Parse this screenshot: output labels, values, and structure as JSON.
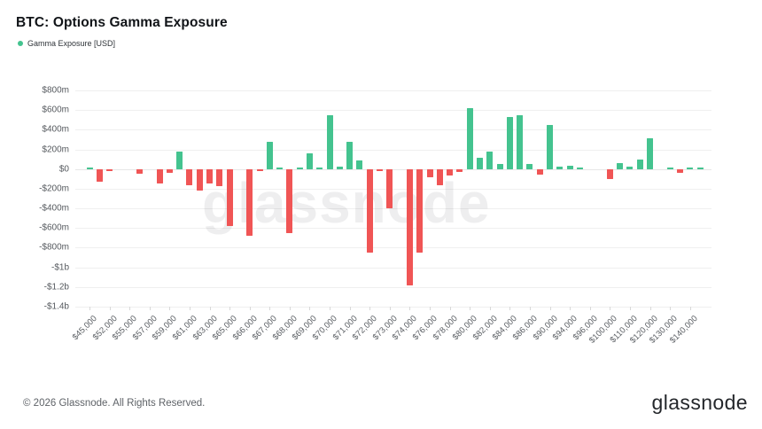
{
  "header": {
    "title": "BTC: Options Gamma Exposure",
    "legend": {
      "label": "Gamma Exposure [USD]",
      "color": "#44c38f"
    }
  },
  "watermark": "glassnode",
  "footer": {
    "copyright": "© 2026 Glassnode. All Rights Reserved.",
    "logo_text": "glassnode"
  },
  "chart_data": {
    "type": "bar",
    "title": "BTC: Options Gamma Exposure",
    "series_name": "Gamma Exposure [USD]",
    "values_unit": "USD millions",
    "ylim_musd": [
      -1400,
      800
    ],
    "grid": true,
    "legend_position": "top-left",
    "colors": {
      "positive": "#44c38f",
      "negative": "#f05555"
    },
    "y_ticks": [
      {
        "label": "$800m",
        "value_musd": 800
      },
      {
        "label": "$600m",
        "value_musd": 600
      },
      {
        "label": "$400m",
        "value_musd": 400
      },
      {
        "label": "$200m",
        "value_musd": 200
      },
      {
        "label": "$0",
        "value_musd": 0
      },
      {
        "label": "-$200m",
        "value_musd": -200
      },
      {
        "label": "-$400m",
        "value_musd": -400
      },
      {
        "label": "-$600m",
        "value_musd": -600
      },
      {
        "label": "-$800m",
        "value_musd": -800
      },
      {
        "label": "-$1b",
        "value_musd": -1000
      },
      {
        "label": "-$1.2b",
        "value_musd": -1200
      },
      {
        "label": "-$1.4b",
        "value_musd": -1400
      }
    ],
    "x_tick_labels": [
      "$45,000",
      "$52,000",
      "$55,000",
      "$57,000",
      "$59,000",
      "$61,000",
      "$63,000",
      "$65,000",
      "$66,000",
      "$67,000",
      "$68,000",
      "$69,000",
      "$70,000",
      "$71,000",
      "$72,000",
      "$73,000",
      "$74,000",
      "$76,000",
      "$78,000",
      "$80,000",
      "$82,000",
      "$84,000",
      "$86,000",
      "$90,000",
      "$94,000",
      "$96,000",
      "$100,000",
      "$110,000",
      "$120,000",
      "$130,000",
      "$140,000"
    ],
    "bars": [
      {
        "label": "$45,000",
        "value_musd": 15
      },
      {
        "label": "",
        "value_musd": -130
      },
      {
        "label": "$52,000",
        "value_musd": -20
      },
      {
        "label": "",
        "value_musd": 0
      },
      {
        "label": "$55,000",
        "value_musd": 0
      },
      {
        "label": "",
        "value_musd": -45
      },
      {
        "label": "$57,000",
        "value_musd": 0
      },
      {
        "label": "",
        "value_musd": -145
      },
      {
        "label": "$59,000",
        "value_musd": -40
      },
      {
        "label": "",
        "value_musd": 180
      },
      {
        "label": "$61,000",
        "value_musd": -165
      },
      {
        "label": "",
        "value_musd": -220
      },
      {
        "label": "$63,000",
        "value_musd": -150
      },
      {
        "label": "",
        "value_musd": -175
      },
      {
        "label": "$65,000",
        "value_musd": -580
      },
      {
        "label": "",
        "value_musd": 0
      },
      {
        "label": "$66,000",
        "value_musd": -680
      },
      {
        "label": "",
        "value_musd": -20
      },
      {
        "label": "$67,000",
        "value_musd": 275
      },
      {
        "label": "",
        "value_musd": 15
      },
      {
        "label": "$68,000",
        "value_musd": -650
      },
      {
        "label": "",
        "value_musd": 10
      },
      {
        "label": "$69,000",
        "value_musd": 160
      },
      {
        "label": "",
        "value_musd": 20
      },
      {
        "label": "$70,000",
        "value_musd": 550
      },
      {
        "label": "",
        "value_musd": 25
      },
      {
        "label": "$71,000",
        "value_musd": 280
      },
      {
        "label": "",
        "value_musd": 85
      },
      {
        "label": "$72,000",
        "value_musd": -850
      },
      {
        "label": "",
        "value_musd": -20
      },
      {
        "label": "$73,000",
        "value_musd": -400
      },
      {
        "label": "",
        "value_musd": 0
      },
      {
        "label": "$74,000",
        "value_musd": -1185
      },
      {
        "label": "",
        "value_musd": -850
      },
      {
        "label": "$76,000",
        "value_musd": -85
      },
      {
        "label": "",
        "value_musd": -165
      },
      {
        "label": "$78,000",
        "value_musd": -70
      },
      {
        "label": "",
        "value_musd": -30
      },
      {
        "label": "$80,000",
        "value_musd": 620
      },
      {
        "label": "",
        "value_musd": 115
      },
      {
        "label": "$82,000",
        "value_musd": 175
      },
      {
        "label": "",
        "value_musd": 50
      },
      {
        "label": "$84,000",
        "value_musd": 530
      },
      {
        "label": "",
        "value_musd": 550
      },
      {
        "label": "$86,000",
        "value_musd": 50
      },
      {
        "label": "",
        "value_musd": -55
      },
      {
        "label": "$90,000",
        "value_musd": 450
      },
      {
        "label": "",
        "value_musd": 25
      },
      {
        "label": "$94,000",
        "value_musd": 30
      },
      {
        "label": "",
        "value_musd": 10
      },
      {
        "label": "$96,000",
        "value_musd": 0
      },
      {
        "label": "",
        "value_musd": 0
      },
      {
        "label": "$100,000",
        "value_musd": -105
      },
      {
        "label": "",
        "value_musd": 65
      },
      {
        "label": "$110,000",
        "value_musd": 25
      },
      {
        "label": "",
        "value_musd": 100
      },
      {
        "label": "$120,000",
        "value_musd": 310
      },
      {
        "label": "",
        "value_musd": 0
      },
      {
        "label": "$130,000",
        "value_musd": 20
      },
      {
        "label": "",
        "value_musd": -40
      },
      {
        "label": "$140,000",
        "value_musd": 15
      },
      {
        "label": "",
        "value_musd": 15
      }
    ]
  }
}
